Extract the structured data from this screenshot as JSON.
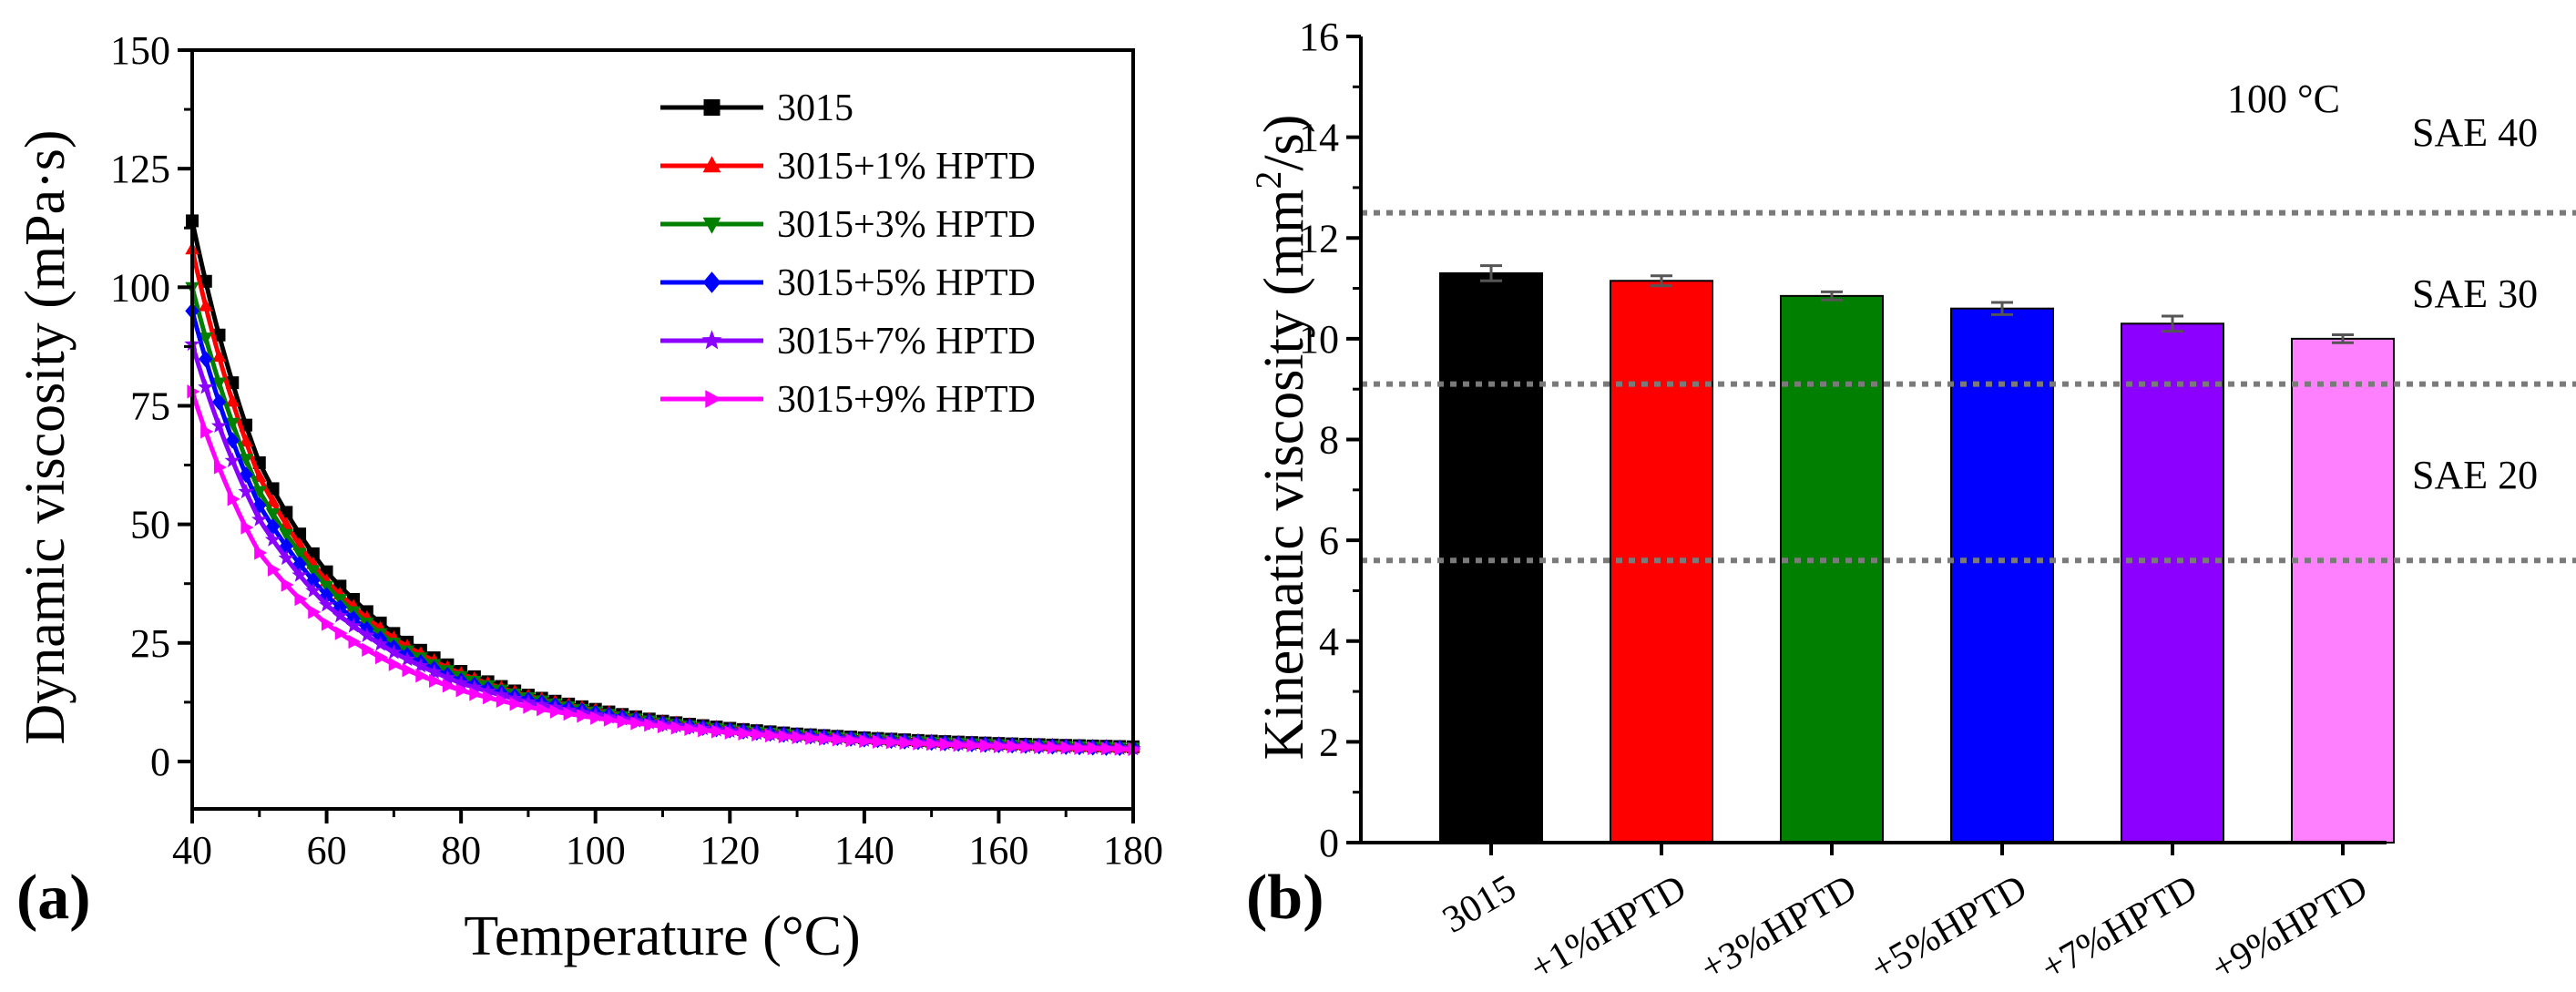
{
  "chart_data": [
    {
      "panel": "(a)",
      "type": "line",
      "title": "",
      "xlabel": "Temperature (°C)",
      "ylabel": "Dynamic viscosity (mPa·s)",
      "xlim": [
        40,
        180
      ],
      "ylim": [
        -10,
        150
      ],
      "xticks": [
        "40",
        "60",
        "80",
        "100",
        "120",
        "140",
        "160",
        "180"
      ],
      "yticks": [
        "0",
        "25",
        "50",
        "75",
        "100",
        "125",
        "150"
      ],
      "legend_position": "top-right",
      "x": [
        40,
        50,
        60,
        70,
        80,
        90,
        100,
        110,
        120,
        130,
        140,
        150,
        160,
        170,
        180
      ],
      "series": [
        {
          "name": "3015",
          "color": "#000000",
          "marker": "square",
          "values": [
            114,
            63,
            40,
            27,
            19,
            14,
            11,
            8.5,
            7,
            5.8,
            5,
            4.3,
            3.8,
            3.4,
            3.1
          ]
        },
        {
          "name": "3015+1% HPTD",
          "color": "#ff0000",
          "marker": "triangle-up",
          "values": [
            108,
            60,
            38,
            26,
            18.5,
            13.8,
            10.8,
            8.4,
            6.9,
            5.7,
            4.9,
            4.2,
            3.7,
            3.3,
            3.0
          ]
        },
        {
          "name": "3015+3% HPTD",
          "color": "#007f00",
          "marker": "triangle-down",
          "values": [
            100,
            57,
            37,
            25,
            18,
            13.5,
            10.5,
            8.2,
            6.7,
            5.6,
            4.8,
            4.1,
            3.6,
            3.2,
            2.9
          ]
        },
        {
          "name": "3015+5% HPTD",
          "color": "#0000ff",
          "marker": "diamond",
          "values": [
            95,
            54,
            35,
            24,
            17,
            13,
            10.2,
            8,
            6.6,
            5.5,
            4.7,
            4,
            3.5,
            3.1,
            2.8
          ]
        },
        {
          "name": "3015+7% HPTD",
          "color": "#8b00ff",
          "marker": "star",
          "values": [
            88,
            51,
            33,
            23,
            16.5,
            12.5,
            9.8,
            7.8,
            6.4,
            5.3,
            4.5,
            3.9,
            3.4,
            3.0,
            2.7
          ]
        },
        {
          "name": "3015+9% HPTD",
          "color": "#ff00ff",
          "marker": "triangle-right",
          "values": [
            78,
            44,
            29,
            20.5,
            15,
            11.5,
            9.2,
            7.4,
            6.1,
            5.1,
            4.3,
            3.7,
            3.2,
            2.9,
            2.6
          ]
        }
      ]
    },
    {
      "panel": "(b)",
      "type": "bar",
      "title": "",
      "ylabel_main": "Kinematic viscosity (mm",
      "ylabel_sup": "2",
      "ylabel_tail": "/s)",
      "xlabel": "",
      "ylim": [
        0,
        16
      ],
      "yticks": [
        "0",
        "2",
        "4",
        "6",
        "8",
        "10",
        "12",
        "14",
        "16"
      ],
      "annotation": "100 °C",
      "categories": [
        "3015",
        "+1%HPTD",
        "+3%HPTD",
        "+5%HPTD",
        "+7%HPTD",
        "+9%HPTD"
      ],
      "values": [
        11.3,
        11.15,
        10.85,
        10.6,
        10.3,
        10.0
      ],
      "errors": [
        0.15,
        0.1,
        0.08,
        0.12,
        0.15,
        0.08
      ],
      "colors": [
        "#000000",
        "#ff0000",
        "#007f00",
        "#0000ff",
        "#8b00ff",
        "#ff80ff"
      ],
      "reference_lines": [
        {
          "value": 12.5,
          "style": "dotted"
        },
        {
          "value": 9.1,
          "style": "dotted"
        },
        {
          "value": 5.6,
          "style": "dotted"
        }
      ],
      "zones": [
        {
          "label": "SAE 40",
          "value": 14.1
        },
        {
          "label": "SAE 30",
          "value": 10.9
        },
        {
          "label": "SAE 20",
          "value": 7.3
        }
      ]
    }
  ]
}
